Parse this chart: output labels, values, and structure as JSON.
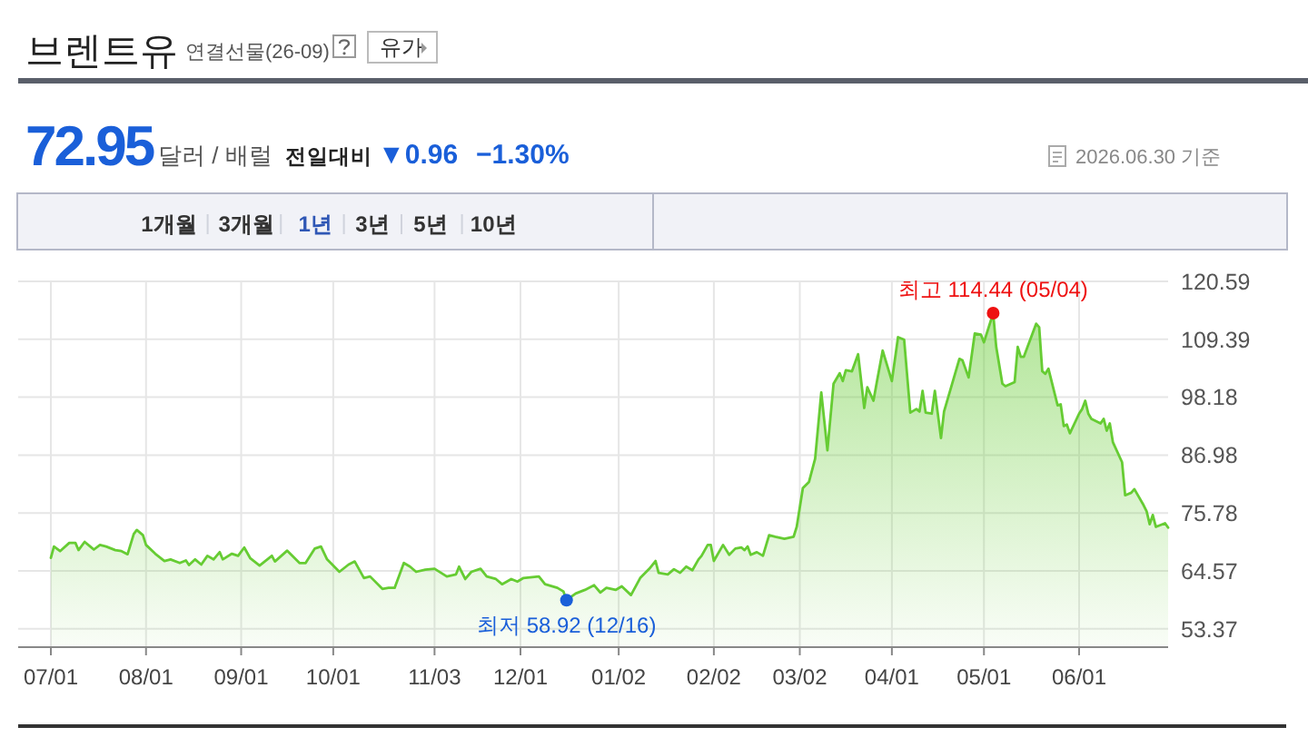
{
  "chart_data": {
    "type": "area",
    "title": "브렌트유",
    "subtitle": "연결선물(26-09)",
    "annotations": [
      "유가",
      "72.95",
      "달러 / 배럴",
      "전일대비",
      "▼0.96",
      "−1.30%",
      "2026.06.30 기준",
      "1개월",
      "3개월",
      "1년",
      "3년",
      "5년",
      "10년",
      {
        "text": "최고 114.44 (05/04)",
        "x": "2026-05-04",
        "y": 114.44
      },
      {
        "text": "최저 58.92 (12/16)",
        "x": "2025-12-16",
        "y": 58.92
      }
    ],
    "x": [
      "2025-07-01",
      "2025-07-02",
      "2025-07-04",
      "2025-07-07",
      "2025-07-09",
      "2025-07-10",
      "2025-07-12",
      "2025-07-14",
      "2025-07-15",
      "2025-07-17",
      "2025-07-19",
      "2025-07-22",
      "2025-07-24",
      "2025-07-26",
      "2025-07-28",
      "2025-07-29",
      "2025-07-31",
      "2025-08-01",
      "2025-08-04",
      "2025-08-07",
      "2025-08-09",
      "2025-08-12",
      "2025-08-14",
      "2025-08-15",
      "2025-08-17",
      "2025-08-19",
      "2025-08-21",
      "2025-08-23",
      "2025-08-25",
      "2025-08-26",
      "2025-08-29",
      "2025-08-31",
      "2025-09-02",
      "2025-09-04",
      "2025-09-07",
      "2025-09-11",
      "2025-09-12",
      "2025-09-16",
      "2025-09-20",
      "2025-09-22",
      "2025-09-25",
      "2025-09-27",
      "2025-09-29",
      "2025-10-03",
      "2025-10-06",
      "2025-10-08",
      "2025-10-11",
      "2025-10-13",
      "2025-10-17",
      "2025-10-19",
      "2025-10-21",
      "2025-10-24",
      "2025-10-26",
      "2025-10-28",
      "2025-10-31",
      "2025-11-03",
      "2025-11-07",
      "2025-11-10",
      "2025-11-11",
      "2025-11-13",
      "2025-11-15",
      "2025-11-18",
      "2025-11-20",
      "2025-11-23",
      "2025-11-25",
      "2025-11-28",
      "2025-11-30",
      "2025-12-02",
      "2025-12-07",
      "2025-12-09",
      "2025-12-13",
      "2025-12-15",
      "2025-12-16",
      "2025-12-19",
      "2025-12-22",
      "2025-12-25",
      "2025-12-27",
      "2025-12-29",
      "2026-01-01",
      "2026-01-03",
      "2026-01-06",
      "2026-01-09",
      "2026-01-12",
      "2026-01-14",
      "2026-01-15",
      "2026-01-18",
      "2026-01-20",
      "2026-01-22",
      "2026-01-24",
      "2026-01-26",
      "2026-01-28",
      "2026-01-29",
      "2026-01-31",
      "2026-02-01",
      "2026-02-02",
      "2026-02-05",
      "2026-02-07",
      "2026-02-09",
      "2026-02-11",
      "2026-02-12",
      "2026-02-13",
      "2026-02-14",
      "2026-02-16",
      "2026-02-18",
      "2026-02-20",
      "2026-02-22",
      "2026-02-25",
      "2026-02-28",
      "2026-03-01",
      "2026-03-03",
      "2026-03-05",
      "2026-03-07",
      "2026-03-09",
      "2026-03-11",
      "2026-03-13",
      "2026-03-15",
      "2026-03-16",
      "2026-03-17",
      "2026-03-19",
      "2026-03-21",
      "2026-03-23",
      "2026-03-24",
      "2026-03-26",
      "2026-03-27",
      "2026-03-29",
      "2026-04-01",
      "2026-04-03",
      "2026-04-05",
      "2026-04-07",
      "2026-04-09",
      "2026-04-10",
      "2026-04-11",
      "2026-04-12",
      "2026-04-14",
      "2026-04-15",
      "2026-04-17",
      "2026-04-18",
      "2026-04-23",
      "2026-04-24",
      "2026-04-26",
      "2026-04-28",
      "2026-04-30",
      "2026-05-01",
      "2026-05-04",
      "2026-05-05",
      "2026-05-07",
      "2026-05-08",
      "2026-05-11",
      "2026-05-12",
      "2026-05-13",
      "2026-05-14",
      "2026-05-18",
      "2026-05-19",
      "2026-05-20",
      "2026-05-21",
      "2026-05-22",
      "2026-05-25",
      "2026-05-26",
      "2026-05-27",
      "2026-05-28",
      "2026-05-29",
      "2026-06-01",
      "2026-06-02",
      "2026-06-03",
      "2026-06-04",
      "2026-06-05",
      "2026-06-08",
      "2026-06-09",
      "2026-06-10",
      "2026-06-11",
      "2026-06-12",
      "2026-06-15",
      "2026-06-16",
      "2026-06-18",
      "2026-06-19",
      "2026-06-22",
      "2026-06-23",
      "2026-06-24",
      "2026-06-25",
      "2026-06-26",
      "2026-06-29",
      "2026-06-30"
    ],
    "series": [
      {
        "color": "#66cc33",
        "values": [
          67.1,
          69.3,
          68.4,
          70.0,
          70.0,
          68.6,
          70.2,
          69.2,
          68.7,
          69.6,
          69.3,
          68.6,
          68.4,
          67.8,
          71.7,
          72.5,
          71.5,
          69.6,
          67.9,
          66.5,
          66.8,
          66.1,
          66.6,
          65.7,
          66.8,
          65.8,
          67.5,
          66.8,
          68.2,
          66.8,
          67.9,
          67.5,
          69.1,
          67.0,
          65.6,
          67.5,
          66.4,
          68.5,
          66.1,
          66.1,
          68.9,
          69.3,
          66.8,
          64.4,
          65.8,
          66.4,
          63.2,
          63.5,
          61.1,
          61.3,
          61.3,
          66.1,
          65.4,
          64.4,
          64.8,
          65.0,
          63.5,
          63.9,
          65.4,
          63.0,
          64.4,
          65.0,
          63.5,
          63.0,
          62.0,
          63.0,
          62.5,
          63.2,
          63.5,
          62.0,
          61.3,
          60.6,
          58.92,
          60.2,
          60.9,
          61.8,
          60.4,
          61.3,
          60.9,
          61.6,
          59.9,
          63.2,
          65.0,
          66.5,
          64.2,
          63.9,
          64.9,
          64.2,
          65.4,
          64.7,
          66.8,
          67.5,
          69.6,
          69.6,
          66.5,
          69.6,
          67.7,
          68.9,
          69.1,
          68.6,
          69.3,
          67.7,
          68.2,
          67.5,
          71.5,
          71.2,
          70.8,
          71.2,
          73.1,
          80.6,
          81.8,
          86.3,
          99.1,
          87.9,
          100.8,
          102.8,
          101.3,
          103.4,
          103.2,
          106.5,
          96.1,
          100.1,
          97.5,
          100.8,
          107.2,
          101.3,
          109.8,
          109.3,
          95.2,
          95.9,
          95.4,
          99.4,
          95.2,
          95.0,
          99.4,
          90.3,
          95.4,
          105.6,
          105.3,
          102.0,
          110.5,
          110.3,
          108.8,
          114.44,
          107.9,
          100.8,
          100.3,
          101.1,
          107.9,
          106.0,
          106.0,
          112.4,
          111.7,
          103.2,
          102.7,
          103.7,
          96.6,
          96.8,
          92.6,
          92.9,
          91.2,
          95.0,
          95.9,
          97.5,
          95.0,
          94.0,
          93.1,
          94.0,
          91.7,
          93.1,
          89.5,
          85.6,
          79.2,
          79.7,
          80.4,
          77.3,
          76.1,
          73.6,
          75.4,
          73.1,
          73.8,
          72.95
        ]
      }
    ],
    "xlim": [
      "2025-07-01",
      "2026-06-30"
    ],
    "xticks": [
      {
        "value": "2025-07-01",
        "label": "07/01"
      },
      {
        "value": "2025-08-01",
        "label": "08/01"
      },
      {
        "value": "2025-09-01",
        "label": "09/01"
      },
      {
        "value": "2025-10-01",
        "label": "10/01"
      },
      {
        "value": "2025-11-03",
        "label": "11/03"
      },
      {
        "value": "2025-12-01",
        "label": "12/01"
      },
      {
        "value": "2026-01-02",
        "label": "01/02"
      },
      {
        "value": "2026-02-02",
        "label": "02/02"
      },
      {
        "value": "2026-03-02",
        "label": "03/02"
      },
      {
        "value": "2026-04-01",
        "label": "04/01"
      },
      {
        "value": "2026-05-01",
        "label": "05/01"
      },
      {
        "value": "2026-06-01",
        "label": "06/01"
      }
    ],
    "ylim": [
      50,
      120.59
    ],
    "yticks": [
      53.37,
      64.57,
      75.78,
      86.98,
      98.18,
      109.39,
      120.59
    ],
    "grid": true
  }
}
